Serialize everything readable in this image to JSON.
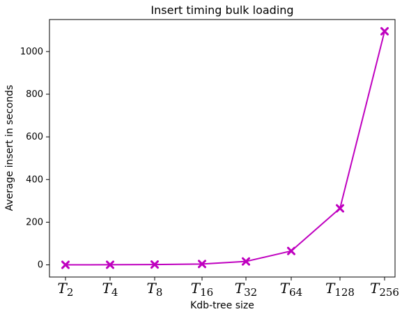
{
  "chart_data": {
    "type": "line",
    "title": "Insert timing bulk loading",
    "xlabel": "Kdb-tree size",
    "ylabel": "Average insert in seconds",
    "categories": [
      {
        "base": "T",
        "sub": "2"
      },
      {
        "base": "T",
        "sub": "4"
      },
      {
        "base": "T",
        "sub": "8"
      },
      {
        "base": "T",
        "sub": "16"
      },
      {
        "base": "T",
        "sub": "32"
      },
      {
        "base": "T",
        "sub": "64"
      },
      {
        "base": "T",
        "sub": "128"
      },
      {
        "base": "T",
        "sub": "256"
      }
    ],
    "series": [
      {
        "values": [
          0.2,
          0.5,
          1.5,
          4,
          16,
          65,
          265,
          1095
        ],
        "color": "#bf00bf",
        "marker": "x-filled"
      }
    ],
    "ylim": [
      -57,
      1150
    ],
    "yticks": [
      0,
      200,
      400,
      600,
      800,
      1000
    ],
    "grid": false,
    "legend": "none"
  }
}
